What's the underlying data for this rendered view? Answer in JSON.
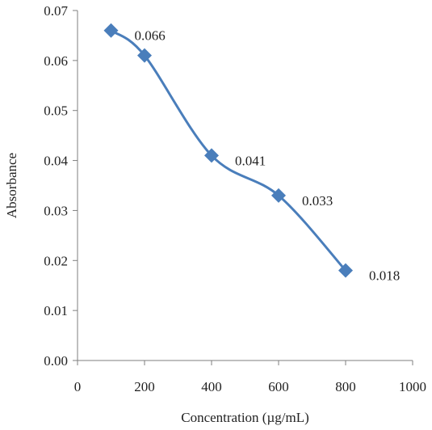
{
  "chart_data": {
    "type": "line",
    "title": "",
    "xlabel": "Concentration (µg/mL)",
    "ylabel": "Absorbance",
    "xlim": [
      0,
      1000
    ],
    "ylim": [
      0.0,
      0.07
    ],
    "x_ticks": [
      "0",
      "200",
      "400",
      "600",
      "800",
      "1000"
    ],
    "y_ticks": [
      "0.00",
      "0.01",
      "0.02",
      "0.03",
      "0.04",
      "0.05",
      "0.06",
      "0.07"
    ],
    "grid": false,
    "legend": "none",
    "smoothed": true,
    "marker": "diamond",
    "color": "#4a7ebb",
    "x": [
      100,
      200,
      400,
      600,
      800
    ],
    "series": [
      {
        "values": [
          0.066,
          0.061,
          0.041,
          0.033,
          0.018
        ],
        "labels": [
          "0.066",
          "",
          "0.041",
          "0.033",
          "0.018"
        ]
      }
    ]
  }
}
